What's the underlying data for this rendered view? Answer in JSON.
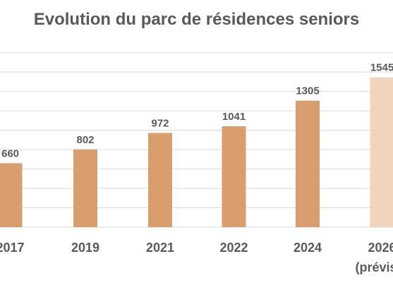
{
  "colors": {
    "actual": "#d99e6e",
    "forecast": "#f2d3bd",
    "grid": "#d9d9d9",
    "text": "#595959"
  },
  "chart_data": {
    "type": "bar",
    "title": "Evolution du parc de résidences seniors",
    "xlabel": "",
    "ylabel": "",
    "categories": [
      "2017",
      "2019",
      "2021",
      "2022",
      "2024",
      "2026"
    ],
    "category_sublabels": [
      "",
      "",
      "",
      "",
      "",
      "(prévision)"
    ],
    "values": [
      660,
      802,
      972,
      1041,
      1305,
      1545
    ],
    "value_labels": [
      "660",
      "802",
      "972",
      "1041",
      "1305",
      "1545"
    ],
    "forecast_flags": [
      false,
      false,
      false,
      false,
      false,
      true
    ],
    "ylim": [
      0,
      1800
    ],
    "grid": true,
    "legend": "none"
  }
}
